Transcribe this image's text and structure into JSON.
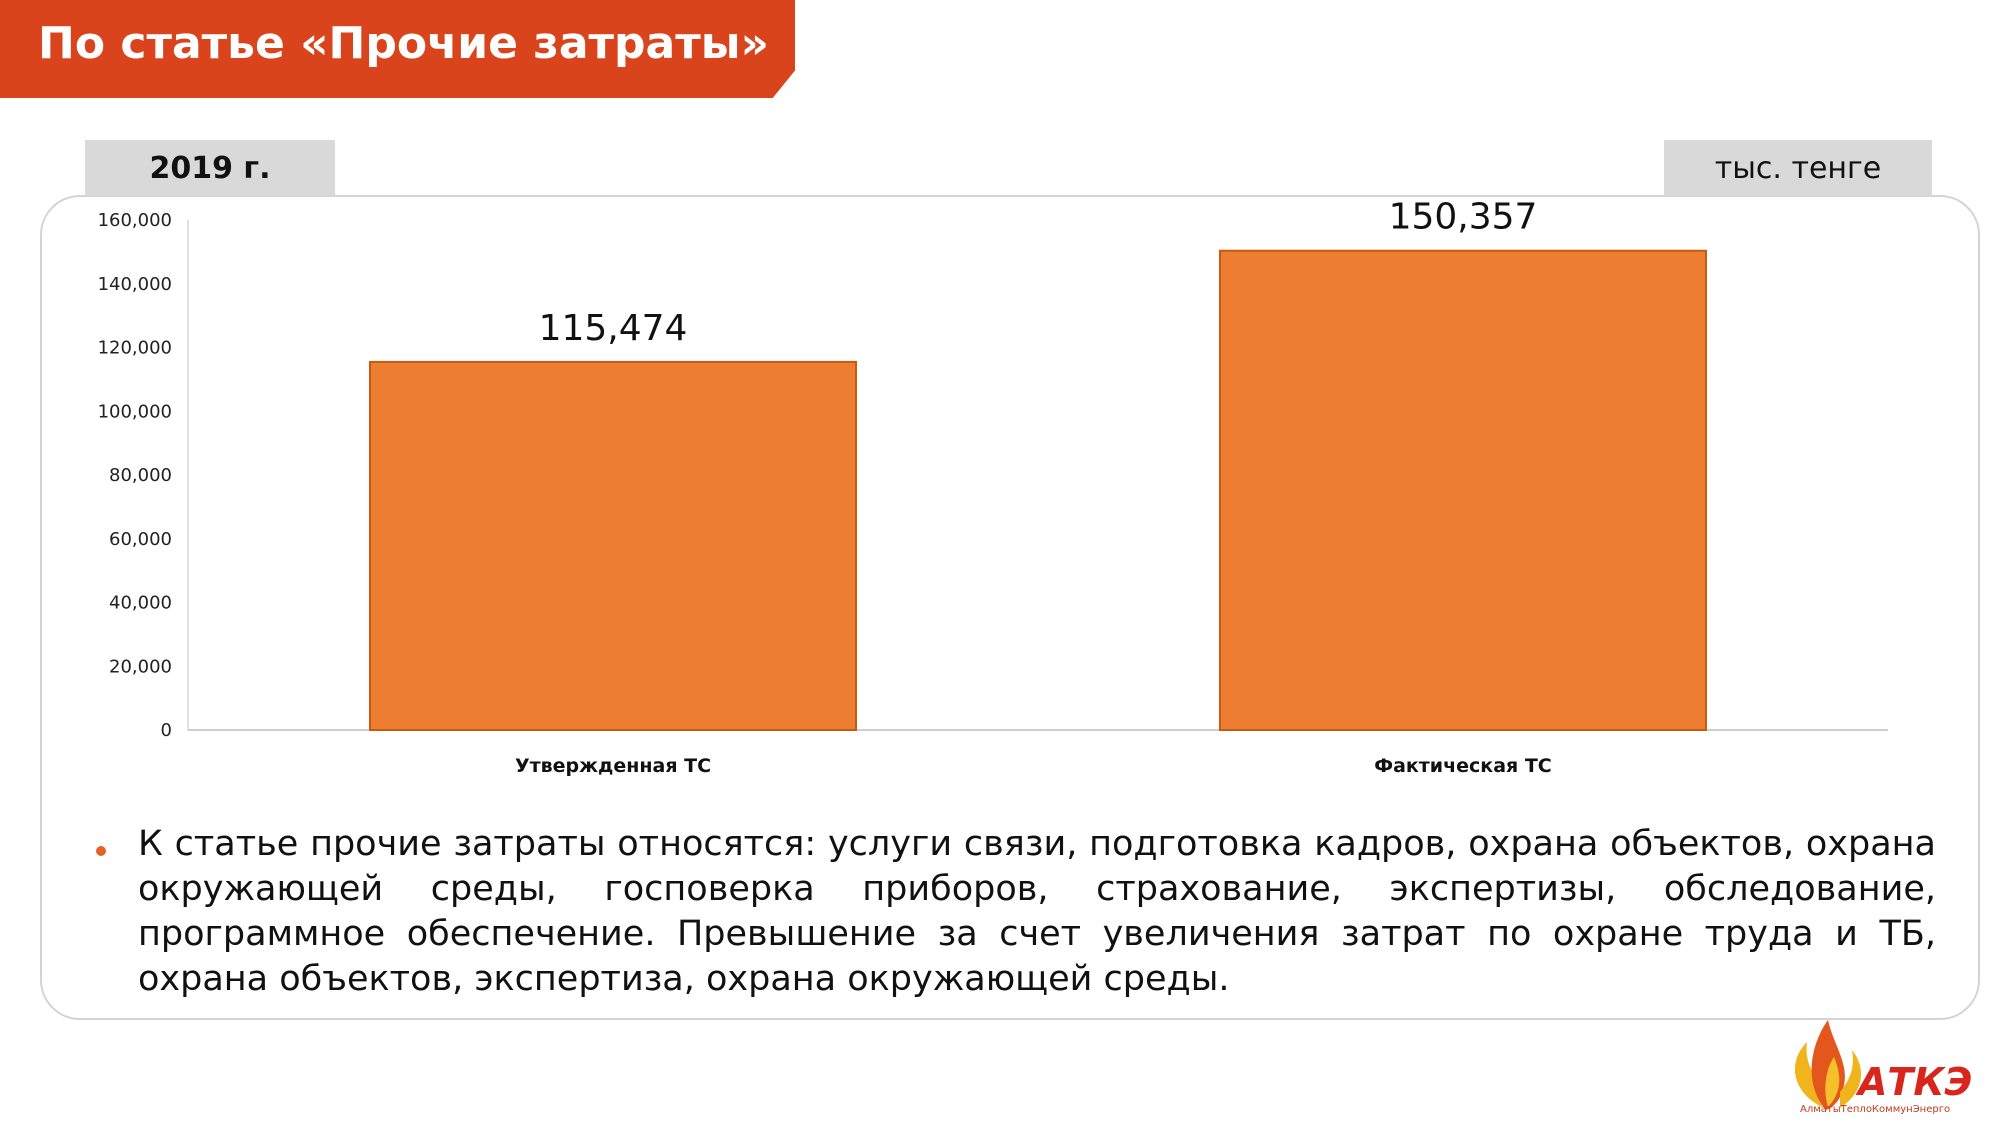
{
  "title": "По статье «Прочие затраты»",
  "year_tab": "2019 г.",
  "unit_tab": "тыс. тенге",
  "bullet_text": "К статье прочие затраты относятся: услуги связи, подготовка кадров, охрана объектов, охрана окружающей среды, госповерка приборов, страхование, экспертизы, обследование, программное обеспечение. Превышение за счет увеличения затрат по охране труда и ТБ, охрана объектов, экспертиза, охрана окружающей среды.",
  "logo": {
    "name": "АТКЭ",
    "subtitle": "АлматыТеплоКоммунЭнерго"
  },
  "colors": {
    "banner": "#d9441c",
    "bar": "#ed7d31",
    "bar_border": "#c55a11",
    "bullet": "#e5612b"
  },
  "chart_data": {
    "type": "bar",
    "categories": [
      "Утвержденная ТС",
      "Фактическая ТС"
    ],
    "values": [
      115474,
      150357
    ],
    "data_labels": [
      "115,474",
      "150,357"
    ],
    "yticks": [
      "0",
      "20,000",
      "40,000",
      "60,000",
      "80,000",
      "100,000",
      "120,000",
      "140,000",
      "160,000"
    ],
    "ylim": [
      0,
      160000
    ],
    "title": "",
    "xlabel": "",
    "ylabel": "",
    "grid": false,
    "legend": "none"
  }
}
